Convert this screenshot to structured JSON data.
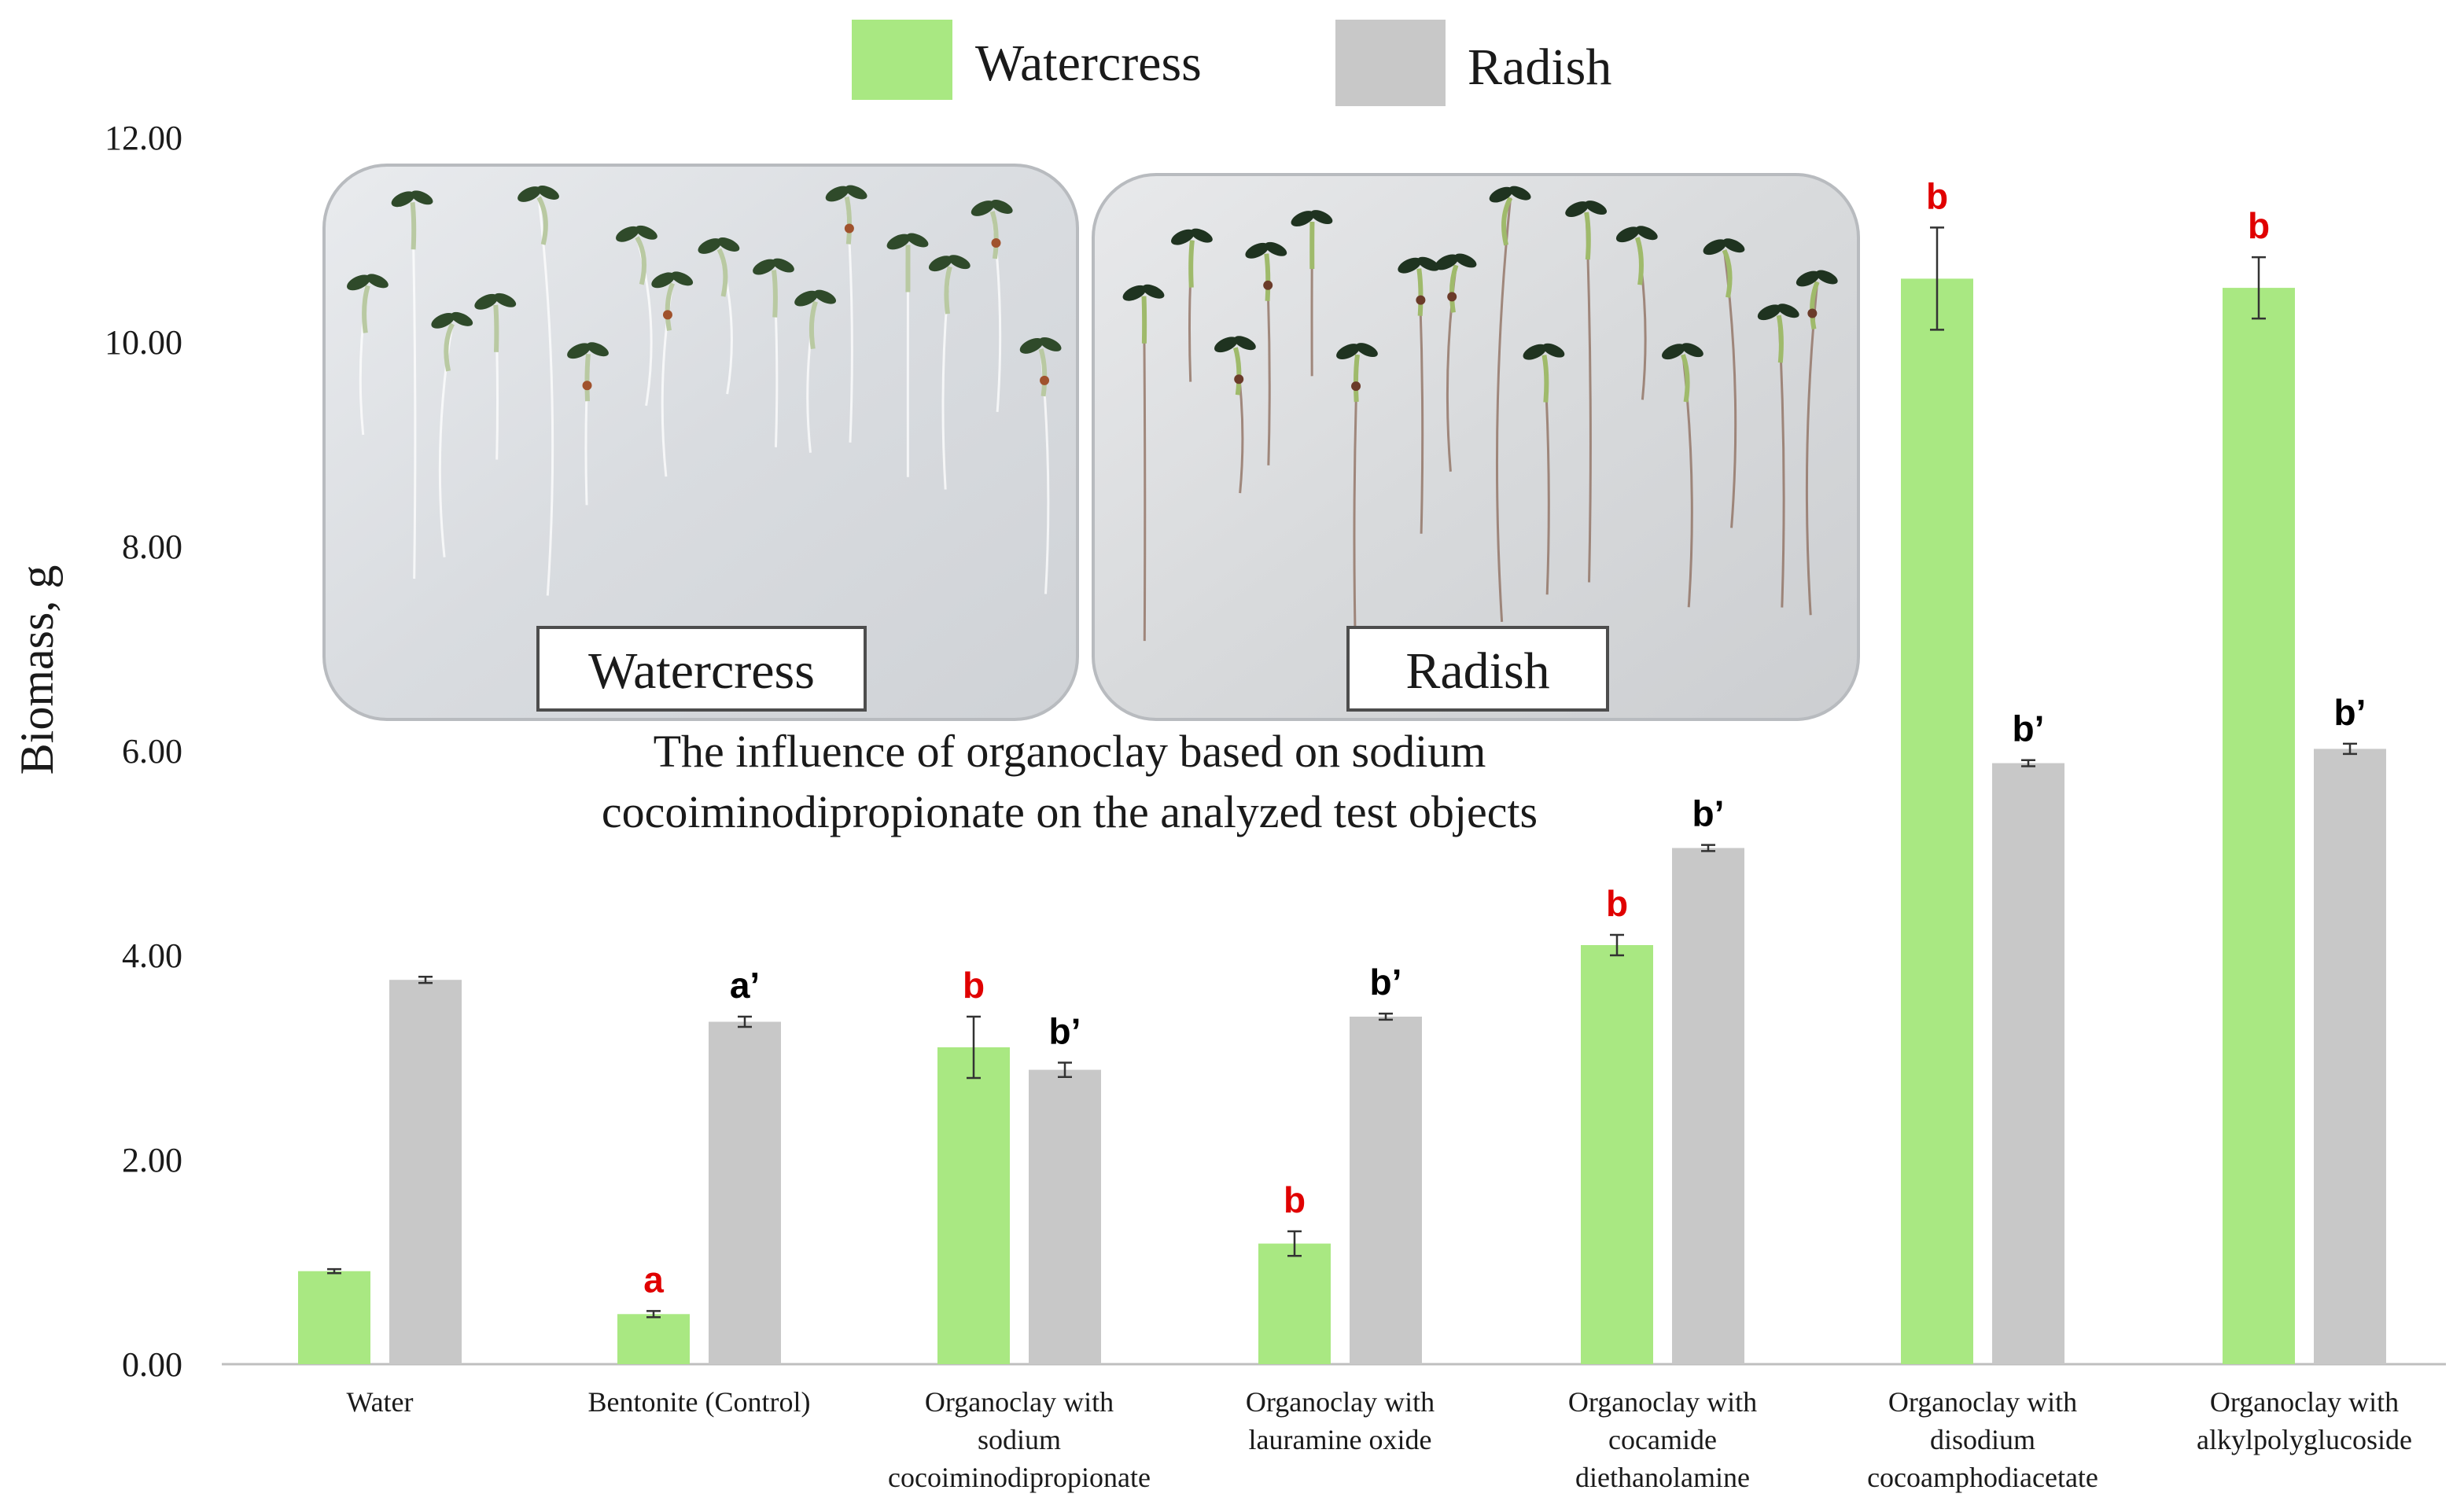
{
  "chart_data": {
    "type": "bar",
    "ylabel": "Biomass, g",
    "ylim": [
      0,
      12
    ],
    "yticks": [
      "0.00",
      "2.00",
      "4.00",
      "6.00",
      "8.00",
      "10.00",
      "12.00"
    ],
    "legend_position": "top-center",
    "categories": [
      [
        "Water"
      ],
      [
        "Bentonite (Control)"
      ],
      [
        "Organoclay with",
        "sodium",
        "cocoiminodipropionate"
      ],
      [
        "Organoclay with",
        "lauramine oxide"
      ],
      [
        "Organoclay with",
        "cocamide",
        "diethanolamine"
      ],
      [
        "Organoclay with",
        "disodium",
        "cocoamphodiacetate"
      ],
      [
        "Organoclay with",
        "alkylpolyglucoside"
      ]
    ],
    "series": [
      {
        "name": "Watercress",
        "color": "#a9e882",
        "values": [
          0.91,
          0.49,
          3.1,
          1.18,
          4.1,
          10.62,
          10.53
        ],
        "errors": [
          0.02,
          0.03,
          0.3,
          0.12,
          0.1,
          0.5,
          0.3
        ],
        "labels": [
          "",
          "a",
          "b",
          "b",
          "b",
          "b",
          "b"
        ],
        "label_color": "#e00000"
      },
      {
        "name": "Radish",
        "color": "#c8c8c8",
        "values": [
          3.76,
          3.35,
          2.88,
          3.4,
          5.05,
          5.88,
          6.02
        ],
        "errors": [
          0.03,
          0.05,
          0.07,
          0.03,
          0.03,
          0.03,
          0.05
        ],
        "labels": [
          "",
          "a’",
          "b’",
          "b’",
          "b’",
          "b’",
          "b’"
        ],
        "label_color": "#000000"
      }
    ],
    "inset": {
      "left_label": "Watercress",
      "right_label": "Radish",
      "caption": [
        "The influence of organoclay based on sodium",
        "cocoiminodipropionate on the analyzed test objects"
      ]
    }
  }
}
